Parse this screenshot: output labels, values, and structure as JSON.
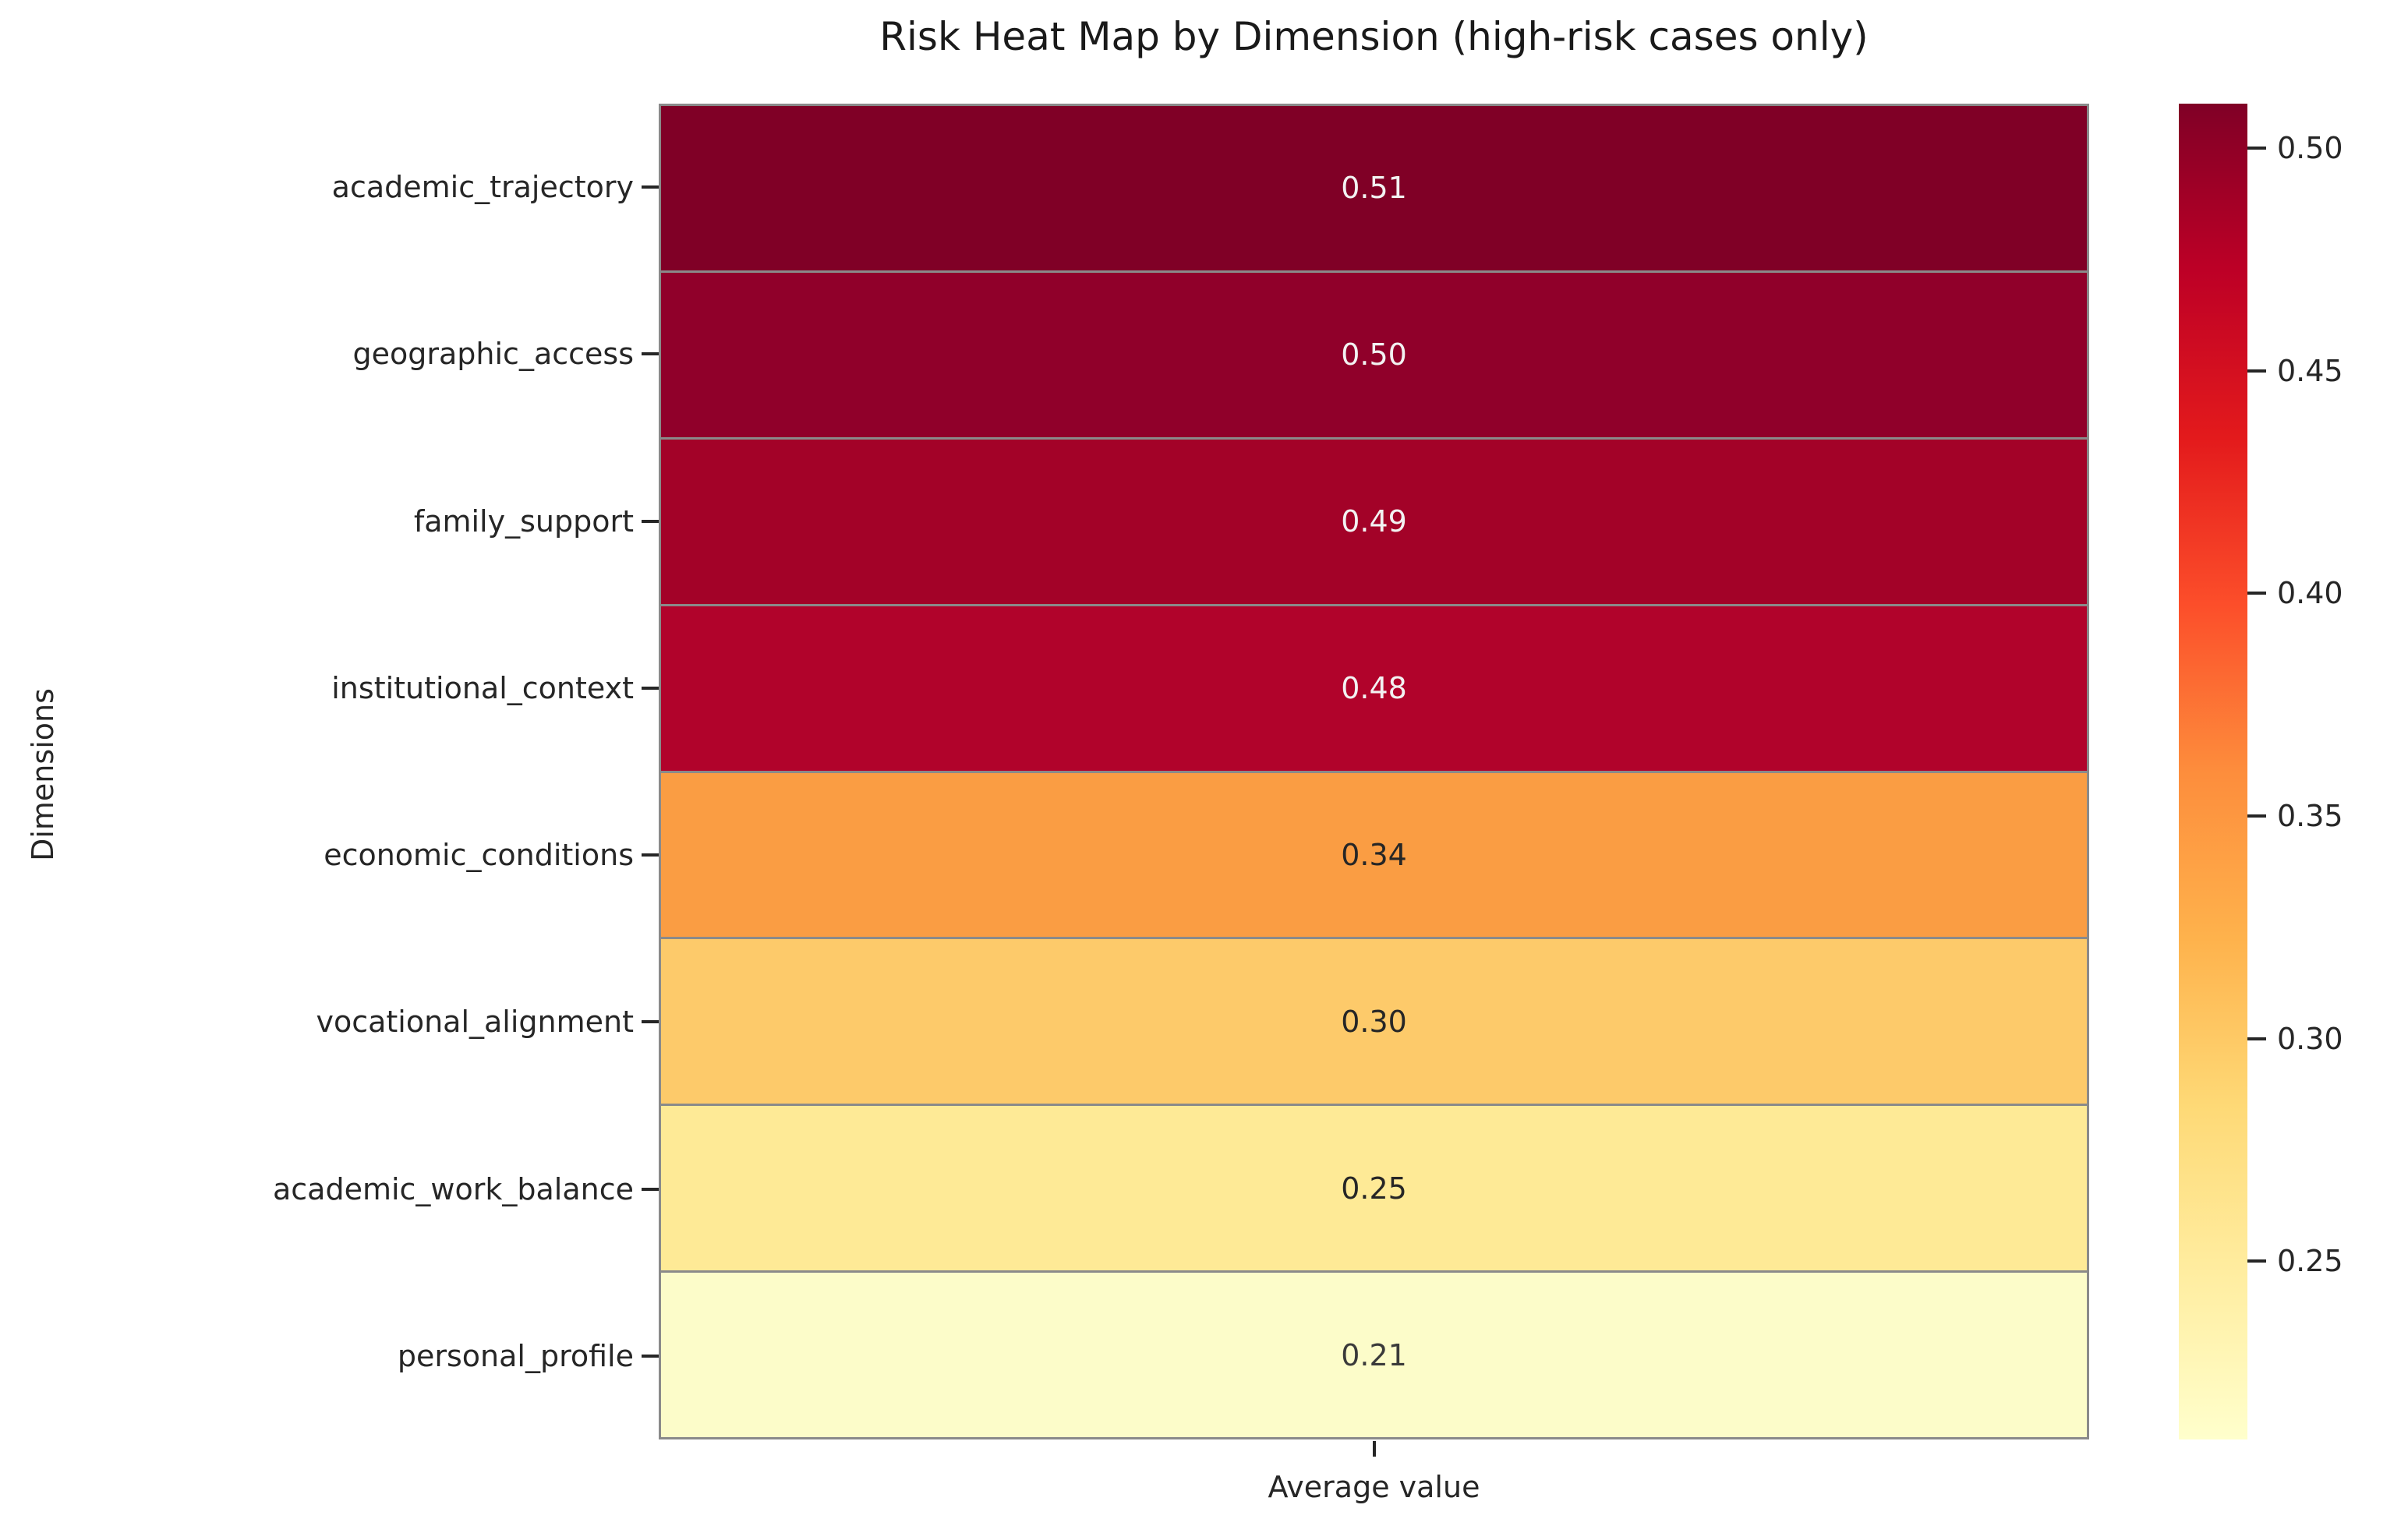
{
  "chart_data": {
    "type": "heatmap",
    "title": "Risk Heat Map by Dimension (high-risk cases only)",
    "xlabel": "Average value",
    "ylabel": "Dimensions",
    "columns": [
      "Average value"
    ],
    "rows": [
      {
        "label": "academic_trajectory",
        "value": "0.51",
        "numeric": 0.51,
        "color": "#800026",
        "text_color": "#f2f2f2"
      },
      {
        "label": "geographic_access",
        "value": "0.50",
        "numeric": 0.5,
        "color": "#90002a",
        "text_color": "#f2f2f2"
      },
      {
        "label": "family_support",
        "value": "0.49",
        "numeric": 0.49,
        "color": "#a30228",
        "text_color": "#f2f2f2"
      },
      {
        "label": "institutional_context",
        "value": "0.48",
        "numeric": 0.48,
        "color": "#b1032b",
        "text_color": "#f2f2f2"
      },
      {
        "label": "economic_conditions",
        "value": "0.34",
        "numeric": 0.34,
        "color": "#fa9d43",
        "text_color": "#262626"
      },
      {
        "label": "vocational_alignment",
        "value": "0.30",
        "numeric": 0.3,
        "color": "#fdca6a",
        "text_color": "#262626"
      },
      {
        "label": "academic_work_balance",
        "value": "0.25",
        "numeric": 0.25,
        "color": "#feea96",
        "text_color": "#262626"
      },
      {
        "label": "personal_profile",
        "value": "0.21",
        "numeric": 0.21,
        "color": "#fcfcc9",
        "text_color": "#3a3a3a"
      }
    ],
    "vmin": 0.21,
    "vmax": 0.51,
    "colorbar": {
      "position": "right",
      "tick_labels": [
        "0.50",
        "0.45",
        "0.40",
        "0.35",
        "0.30",
        "0.25"
      ],
      "tick_values": [
        0.5,
        0.45,
        0.4,
        0.35,
        0.3,
        0.25
      ],
      "gradient_stops_top_to_bottom": [
        "#800026",
        "#bd0026",
        "#e31a1c",
        "#fc4e2a",
        "#fd8d3c",
        "#feb24c",
        "#fed976",
        "#ffeda0",
        "#ffffcc"
      ]
    },
    "grid_line_color": "#8a8a8a",
    "annotations_shown": true
  }
}
